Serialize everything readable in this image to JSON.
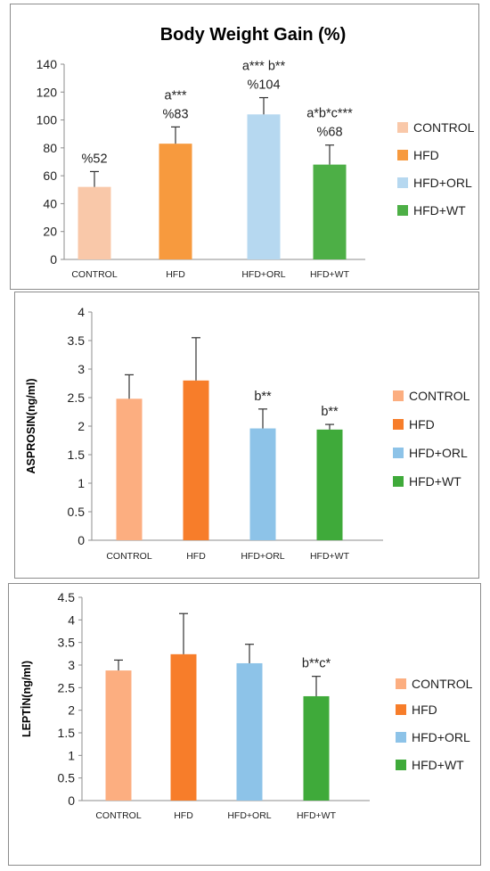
{
  "chart_data": [
    {
      "type": "bar",
      "title": "Body Weight Gain (%)",
      "ylabel": "",
      "ylim": [
        0,
        140
      ],
      "yticks": [
        "0",
        "20",
        "40",
        "60",
        "80",
        "100",
        "120",
        "140"
      ],
      "categories": [
        "CONTROL",
        "HFD",
        "HFD+ORL",
        "HFD+WT"
      ],
      "values": [
        52,
        83,
        104,
        68
      ],
      "errors": [
        11,
        12,
        12,
        14
      ],
      "annotations": [
        [
          "%52"
        ],
        [
          "a***",
          "%83"
        ],
        [
          "a*** b**",
          "%104"
        ],
        [
          "a*b*c***",
          "%68"
        ]
      ],
      "colors": [
        "#F9C8A9",
        "#F79A3E",
        "#B6D8F0",
        "#4DAF46"
      ],
      "legend": [
        "CONTROL",
        "HFD",
        "HFD+ORL",
        "HFD+WT"
      ],
      "legend_position": "right",
      "grid": false
    },
    {
      "type": "bar",
      "title": "",
      "ylabel": "ASPROSIN(ng/ml)",
      "ylim": [
        0,
        4
      ],
      "yticks": [
        "0",
        "0.5",
        "1",
        "1.5",
        "2",
        "2.5",
        "3",
        "3.5",
        "4"
      ],
      "categories": [
        "CONTROL",
        "HFD",
        "HFD+ORL",
        "HFD+WT"
      ],
      "values": [
        2.48,
        2.8,
        1.96,
        1.94
      ],
      "errors": [
        0.42,
        0.75,
        0.34,
        0.09
      ],
      "annotations": [
        [],
        [],
        [
          "b**"
        ],
        [
          "b**"
        ]
      ],
      "colors": [
        "#FCAE80",
        "#F77D2A",
        "#8DC3E8",
        "#3FAA3A"
      ],
      "legend": [
        "CONTROL",
        "HFD",
        "HFD+ORL",
        "HFD+WT"
      ],
      "legend_position": "right",
      "grid": false
    },
    {
      "type": "bar",
      "title": "",
      "ylabel": "LEPTİN(ng/ml)",
      "ylim": [
        0,
        4.5
      ],
      "yticks": [
        "0",
        "0.5",
        "1",
        "1.5",
        "2",
        "2.5",
        "3",
        "3.5",
        "4",
        "4.5"
      ],
      "categories": [
        "CONTROL",
        "HFD",
        "HFD+ORL",
        "HFD+WT"
      ],
      "values": [
        2.88,
        3.24,
        3.04,
        2.31
      ],
      "errors": [
        0.23,
        0.9,
        0.42,
        0.44
      ],
      "annotations": [
        [],
        [],
        [],
        [
          "b**c*"
        ]
      ],
      "colors": [
        "#FCAE80",
        "#F77D2A",
        "#8DC3E8",
        "#3FAA3A"
      ],
      "legend": [
        "CONTROL",
        "HFD",
        "HFD+ORL",
        "HFD+WT"
      ],
      "legend_position": "right",
      "grid": false
    }
  ]
}
